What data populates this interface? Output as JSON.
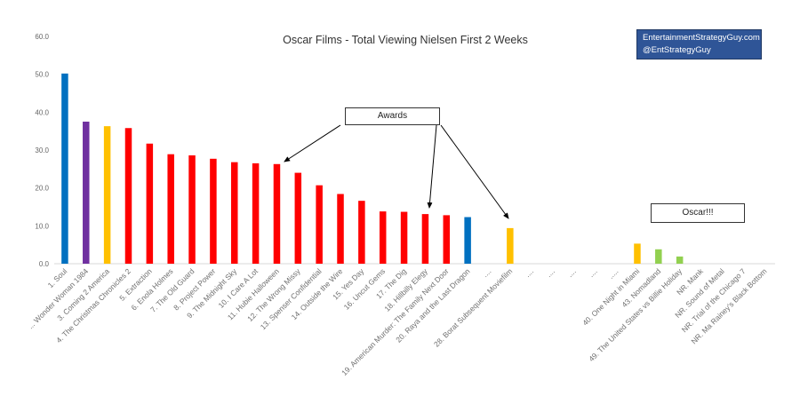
{
  "chart_data": {
    "type": "bar",
    "title": "Oscar Films - Total Viewing Nielsen First 2 Weeks",
    "xlabel": "",
    "ylabel": "",
    "ylim": [
      0,
      60
    ],
    "yticks": [
      "0.0",
      "10.0",
      "20.0",
      "30.0",
      "40.0",
      "50.0",
      "60.0"
    ],
    "grid": false,
    "legend": "none",
    "categories": [
      "1. Soul",
      "... Wonder Woman 1984",
      "3. Coming 2 America",
      "4. The Christmas Chronicles 2",
      "5. Extraction",
      "6. Enola Holmes",
      "7. The Old Guard",
      "8. Project Power",
      "9. The Midnight Sky",
      "10. I Care A Lot",
      "11. Hubie Halloween",
      "12. The Wrong Missy",
      "13. Spenser Confidential",
      "14. Outside the Wire",
      "15. Yes Day",
      "16. Uncut Gems",
      "17. The Dig",
      "18. Hillbilly Elegy",
      "19. American Murder: The Family Next Door",
      "20. Raya and the Last Dragon",
      "....",
      "28. Borat Subsequent Moviefilm",
      "....",
      "....",
      "....",
      "....",
      ".....",
      "40. One Night in Miami",
      "43. Nomadland",
      "49. The United States vs Billie Holiday",
      "NR. Mank",
      "NR. Sound of Metal",
      "NR. Trial of the Chicago 7",
      "NR. Ma Rainey's Black Bottom"
    ],
    "values": [
      50.2,
      37.5,
      36.3,
      35.8,
      31.7,
      28.9,
      28.6,
      27.7,
      26.8,
      26.5,
      26.3,
      24.0,
      20.7,
      18.4,
      16.6,
      13.8,
      13.7,
      13.1,
      12.8,
      12.3,
      0,
      9.4,
      0,
      0,
      0,
      0,
      0,
      5.3,
      3.8,
      1.9,
      0,
      0,
      0,
      0
    ],
    "colors": [
      "#0070c0",
      "#7030a0",
      "#ffc000",
      "#ff0000",
      "#ff0000",
      "#ff0000",
      "#ff0000",
      "#ff0000",
      "#ff0000",
      "#ff0000",
      "#ff0000",
      "#ff0000",
      "#ff0000",
      "#ff0000",
      "#ff0000",
      "#ff0000",
      "#ff0000",
      "#ff0000",
      "#ff0000",
      "#0070c0",
      "#ffffff",
      "#ffc000",
      "#ffffff",
      "#ffffff",
      "#ffffff",
      "#ffffff",
      "#ffffff",
      "#ffc000",
      "#92d050",
      "#92d050",
      "#ffffff",
      "#ffffff",
      "#ffffff",
      "#ffffff"
    ],
    "annotations": [
      {
        "text": "Awards",
        "arrows_to": [
          "11. Hubie Halloween",
          "18. Hillbilly Elegy",
          "28. Borat Subsequent Moviefilm"
        ]
      },
      {
        "text": "Oscar!!!",
        "arrows_to": []
      }
    ]
  },
  "credit": {
    "line1": "EntertainmentStrategyGuy.com",
    "line2": "@EntStrategyGuy"
  }
}
